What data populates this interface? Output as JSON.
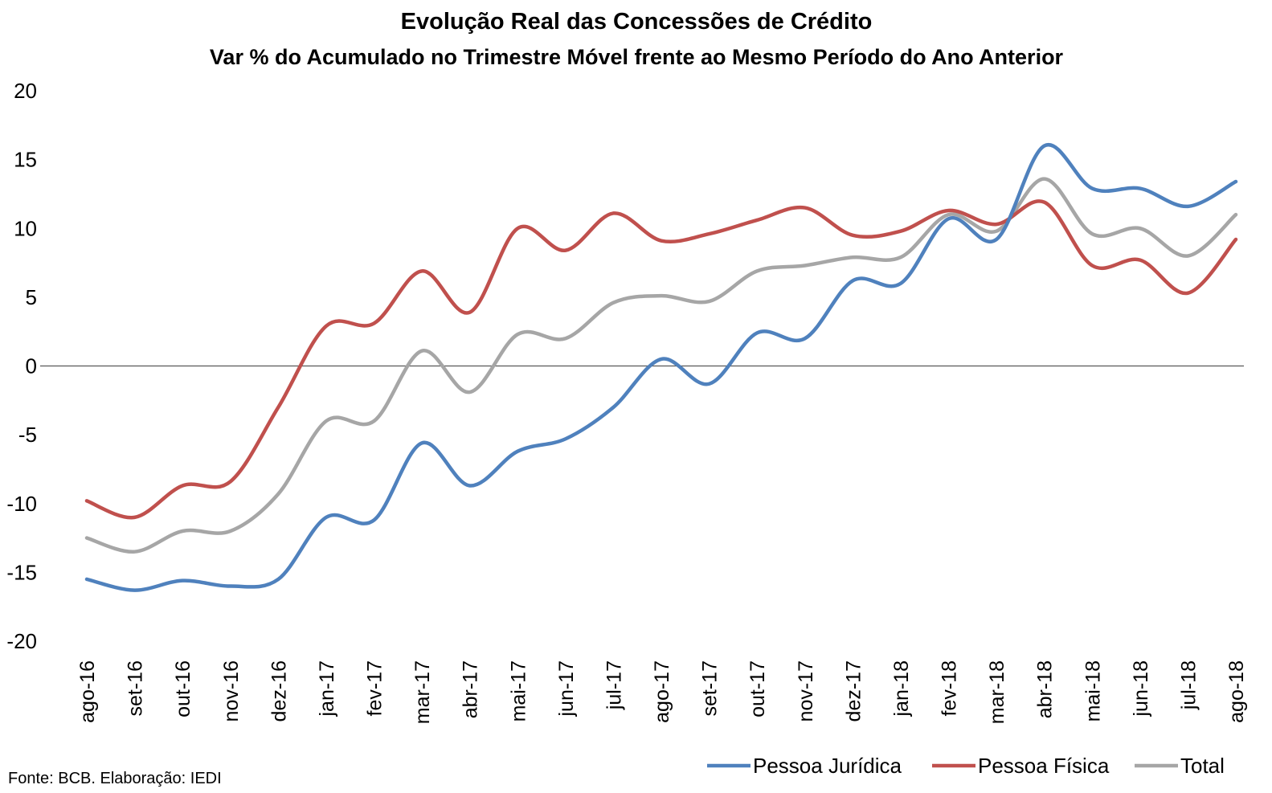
{
  "chart_data": {
    "type": "line",
    "title": "Evolução Real das Concessões de Crédito",
    "subtitle": "Var % do Acumulado no Trimestre Móvel frente ao Mesmo Período do Ano Anterior",
    "categories": [
      "ago-16",
      "set-16",
      "out-16",
      "nov-16",
      "dez-16",
      "jan-17",
      "fev-17",
      "mar-17",
      "abr-17",
      "mai-17",
      "jun-17",
      "jul-17",
      "ago-17",
      "set-17",
      "out-17",
      "nov-17",
      "dez-17",
      "jan-18",
      "fev-18",
      "mar-18",
      "abr-18",
      "mai-18",
      "jun-18",
      "jul-18",
      "ago-18"
    ],
    "ylim": [
      -20,
      20
    ],
    "yticks": [
      "20",
      "15",
      "10",
      "5",
      "0",
      "-5",
      "-10",
      "-15",
      "-20"
    ],
    "grid": false,
    "legend_position": "bottom-right",
    "series": [
      {
        "name": "Pessoa Jurídica",
        "color": "#4F81BD",
        "values": [
          -15.5,
          -16.3,
          -15.6,
          -16.0,
          -15.5,
          -11.0,
          -11.2,
          -5.6,
          -8.7,
          -6.2,
          -5.3,
          -3.0,
          0.5,
          -1.3,
          2.4,
          2.0,
          6.2,
          6.0,
          10.7,
          9.2,
          16.0,
          12.9,
          12.9,
          11.6,
          13.4
        ]
      },
      {
        "name": "Pessoa Física",
        "color": "#C0504D",
        "values": [
          -9.8,
          -11.0,
          -8.7,
          -8.4,
          -3.0,
          2.9,
          3.1,
          6.9,
          3.9,
          10.0,
          8.4,
          11.1,
          9.1,
          9.6,
          10.6,
          11.5,
          9.5,
          9.8,
          11.3,
          10.3,
          11.9,
          7.3,
          7.7,
          5.3,
          9.2
        ]
      },
      {
        "name": "Total",
        "color": "#A6A6A6",
        "values": [
          -12.5,
          -13.5,
          -12.0,
          -12.0,
          -9.3,
          -4.0,
          -4.0,
          1.1,
          -1.9,
          2.3,
          2.0,
          4.6,
          5.1,
          4.7,
          6.9,
          7.3,
          7.9,
          7.9,
          11.0,
          9.8,
          13.6,
          9.6,
          10.0,
          8.0,
          11.0
        ]
      }
    ],
    "source": "Fonte: BCB. Elaboração: IEDI"
  }
}
